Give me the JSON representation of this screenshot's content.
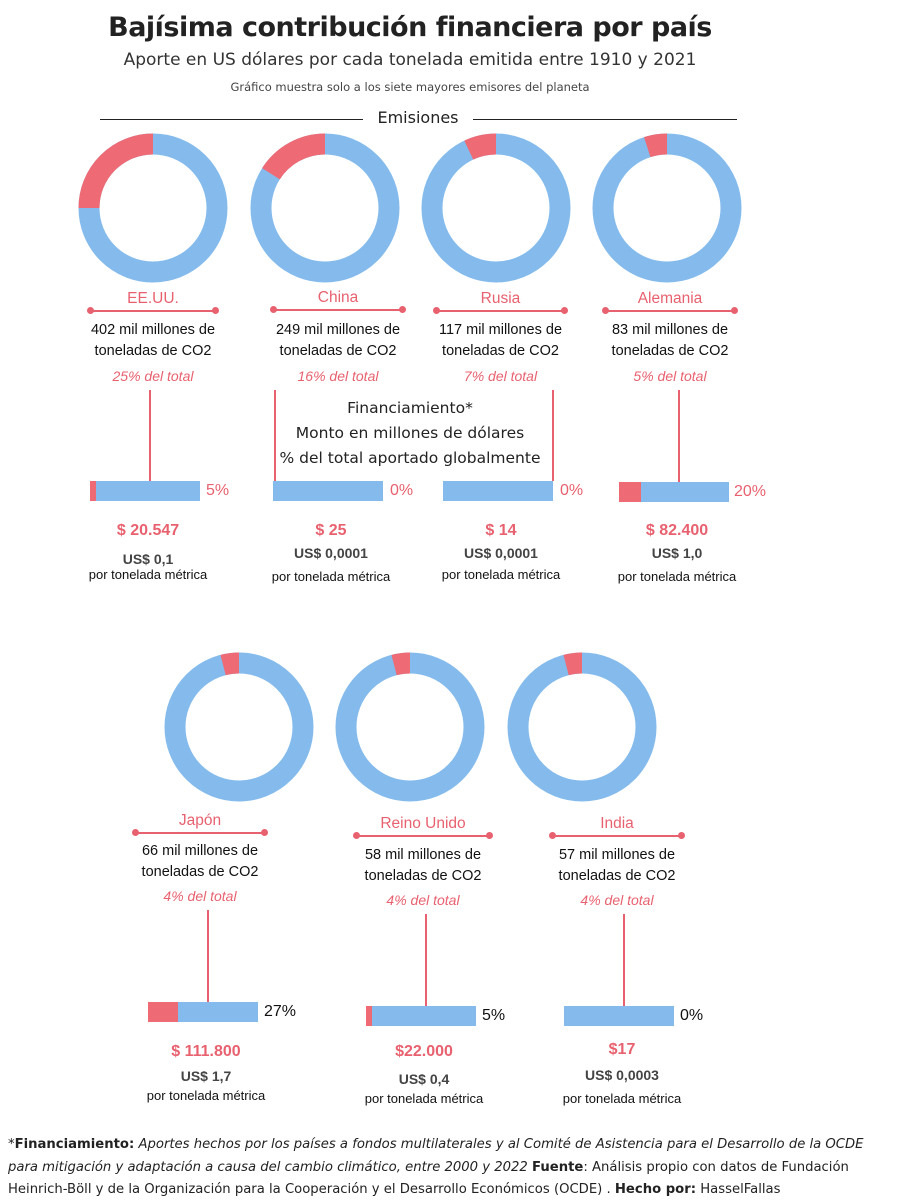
{
  "header": {
    "title": "Bajísima contribución financiera por país",
    "subtitle": "Aporte en US dólares por cada tonelada emitida entre 1910 y 2021",
    "note": "Gráfico muestra solo a los siete mayores emisores del planeta",
    "section_label": "Emisiones",
    "financing_lines": [
      "Financiamiento*",
      "Monto en millones de dólares",
      "% del total aportado globalmente"
    ]
  },
  "colors": {
    "emissions_share": "#ee6a74",
    "remainder": "#84bbec",
    "accent_text": "#e8616f"
  },
  "chart_data": {
    "type": "donut",
    "series": [
      {
        "name": "Emisiones",
        "categories": [
          "EE.UU.",
          "China",
          "Rusia",
          "Alemania",
          "Japón",
          "Reino Unido",
          "India"
        ],
        "values": [
          25,
          16,
          7,
          5,
          4,
          4,
          4
        ]
      },
      {
        "name": "Financiamiento",
        "categories": [
          "EE.UU.",
          "China",
          "Rusia",
          "Alemania",
          "Japón",
          "Reino Unido",
          "India"
        ],
        "values": [
          5,
          0,
          0,
          20,
          27,
          5,
          0
        ]
      }
    ]
  },
  "countries": [
    {
      "name": "EE.UU.",
      "emissions_line1": "402 mil millones de",
      "emissions_line2": "toneladas de CO2",
      "share": 25,
      "share_label": "25% del total",
      "funding_pct": 5,
      "funding_label": "5%",
      "amount": "$ 20.547",
      "per_ton": "US$ 0,1",
      "per_ton_label": "por tonelada métrica"
    },
    {
      "name": "China",
      "emissions_line1": "249 mil millones de",
      "emissions_line2": "toneladas de CO2",
      "share": 16,
      "share_label": "16% del total",
      "funding_pct": 0,
      "funding_label": "0%",
      "amount": "$ 25",
      "per_ton": "US$ 0,0001",
      "per_ton_label": "por tonelada métrica"
    },
    {
      "name": "Rusia",
      "emissions_line1": "117 mil millones de",
      "emissions_line2": "toneladas de CO2",
      "share": 7,
      "share_label": "7% del total",
      "funding_pct": 0,
      "funding_label": "0%",
      "amount": "$ 14",
      "per_ton": "US$ 0,0001",
      "per_ton_label": "por tonelada métrica"
    },
    {
      "name": "Alemania",
      "emissions_line1": "83 mil millones de",
      "emissions_line2": "toneladas de CO2",
      "share": 5,
      "share_label": "5% del total",
      "funding_pct": 20,
      "funding_label": "20%",
      "amount": "$ 82.400",
      "per_ton": "US$ 1,0",
      "per_ton_label": "por tonelada métrica"
    },
    {
      "name": "Japón",
      "emissions_line1": "66 mil millones de",
      "emissions_line2": "toneladas de CO2",
      "share": 4,
      "share_label": "4% del total",
      "funding_pct": 27,
      "funding_label": "27%",
      "amount": "$ 111.800",
      "per_ton": "US$ 1,7",
      "per_ton_label": "por tonelada métrica"
    },
    {
      "name": "Reino Unido",
      "emissions_line1": "58 mil millones de",
      "emissions_line2": "toneladas de CO2",
      "share": 4,
      "share_label": "4% del total",
      "funding_pct": 5,
      "funding_label": "5%",
      "amount": "$22.000",
      "per_ton": "US$ 0,4",
      "per_ton_label": "por tonelada métrica"
    },
    {
      "name": "India",
      "emissions_line1": "57 mil millones de",
      "emissions_line2": "toneladas de CO2",
      "share": 4,
      "share_label": "4% del total",
      "funding_pct": 0,
      "funding_label": "0%",
      "amount": "$17",
      "per_ton": "US$ 0,0003",
      "per_ton_label": "por tonelada métrica"
    }
  ],
  "footer": {
    "def_label": "Financiamiento:",
    "def_text": "Aportes hechos por los países a fondos multilaterales y al Comité de Asistencia para el Desarrollo de la OCDE para mitigación y adaptación a causa del cambio climático, entre 2000 y 2022",
    "source_label": "Fuente",
    "source_text": ": Análisis propio con datos de Fundación Heinrich-Böll y de la Organización para la Cooperación y el Desarrollo Económicos (OCDE)",
    "author_label": "Hecho por:",
    "author": "HasselFallas"
  }
}
